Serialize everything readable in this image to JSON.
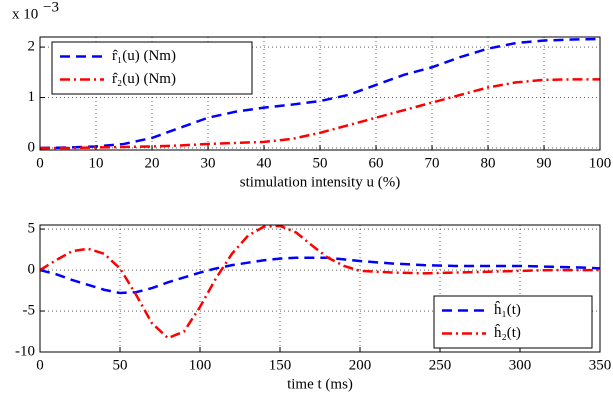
{
  "chart_data": [
    {
      "type": "line",
      "xlabel": "stimulation intensity u (%)",
      "y_multiplier": {
        "base": "x 10",
        "exponent": "−3"
      },
      "x": [
        0,
        5,
        10,
        15,
        20,
        25,
        30,
        35,
        40,
        45,
        50,
        55,
        60,
        65,
        70,
        75,
        80,
        85,
        90,
        95,
        100
      ],
      "series": [
        {
          "name": "r̂₁(u) (Nm)",
          "color": "#0000ff",
          "linestyle": "--",
          "values": [
            0,
            0.01,
            0.03,
            0.08,
            0.2,
            0.4,
            0.6,
            0.72,
            0.8,
            0.86,
            0.93,
            1.05,
            1.25,
            1.45,
            1.6,
            1.8,
            1.97,
            2.08,
            2.13,
            2.15,
            2.16
          ]
        },
        {
          "name": "r̂₂(u) (Nm)",
          "color": "#ff0000",
          "linestyle": "-.",
          "values": [
            0,
            0,
            0.01,
            0.02,
            0.03,
            0.05,
            0.08,
            0.1,
            0.12,
            0.18,
            0.3,
            0.45,
            0.6,
            0.75,
            0.9,
            1.05,
            1.2,
            1.3,
            1.35,
            1.36,
            1.36
          ]
        }
      ],
      "xlim": [
        0,
        100
      ],
      "xticks": [
        0,
        10,
        20,
        30,
        40,
        50,
        60,
        70,
        80,
        90,
        100
      ],
      "ylim": [
        -0.04,
        2.2
      ],
      "yticks": [
        0,
        1,
        2
      ],
      "grid": true,
      "legend": "upper-left"
    },
    {
      "type": "line",
      "xlabel": "time t (ms)",
      "x": [
        0,
        10,
        20,
        30,
        40,
        50,
        60,
        70,
        80,
        90,
        100,
        110,
        120,
        130,
        140,
        150,
        160,
        170,
        180,
        190,
        200,
        220,
        240,
        260,
        280,
        300,
        320,
        340,
        350
      ],
      "series": [
        {
          "name": "ĥ₁(t)",
          "color": "#0000ff",
          "linestyle": "--",
          "values": [
            0,
            -0.5,
            -1.2,
            -1.8,
            -2.4,
            -2.8,
            -2.7,
            -2.2,
            -1.5,
            -0.9,
            -0.3,
            0.2,
            0.6,
            0.9,
            1.2,
            1.4,
            1.5,
            1.5,
            1.5,
            1.3,
            1.1,
            0.8,
            0.6,
            0.5,
            0.5,
            0.5,
            0.4,
            0.3,
            0.2
          ]
        },
        {
          "name": "ĥ₂(t)",
          "color": "#ff0000",
          "linestyle": "-.",
          "values": [
            0,
            1.2,
            2.3,
            2.6,
            2,
            0.2,
            -3,
            -6.5,
            -8.3,
            -7.5,
            -4.5,
            -1,
            2,
            4.2,
            5.3,
            5.4,
            4.6,
            3,
            1.5,
            0.5,
            -0.1,
            -0.3,
            -0.4,
            -0.3,
            -0.2,
            -0.1,
            0,
            0,
            0
          ]
        }
      ],
      "xlim": [
        0,
        350
      ],
      "xticks": [
        0,
        50,
        100,
        150,
        200,
        250,
        300,
        350
      ],
      "ylim": [
        -10,
        5.5
      ],
      "yticks": [
        -10,
        -5,
        0,
        5
      ],
      "grid": true,
      "legend": "lower-right"
    }
  ]
}
